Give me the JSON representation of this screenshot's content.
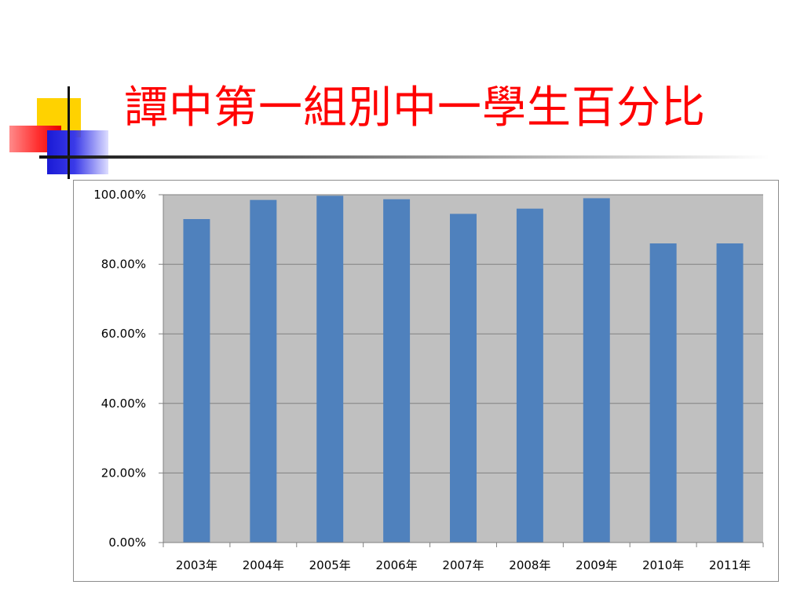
{
  "slide": {
    "title": "譚中第一組別中一學生百分比"
  },
  "colors": {
    "title": "#ff0000",
    "bar": "#4f81bd",
    "plot_background": "#c0c0c0",
    "gridline": "#808080"
  },
  "chart_data": {
    "type": "bar",
    "title": "",
    "xlabel": "",
    "ylabel": "",
    "categories": [
      "2003年",
      "2004年",
      "2005年",
      "2006年",
      "2007年",
      "2008年",
      "2009年",
      "2010年",
      "2011年"
    ],
    "values": [
      93.0,
      98.5,
      99.7,
      98.7,
      94.5,
      96.0,
      99.0,
      86.0,
      86.0
    ],
    "ylim": [
      0,
      100
    ],
    "yticks": [
      0,
      20,
      40,
      60,
      80,
      100
    ],
    "ytick_labels": [
      "0.00%",
      "20.00%",
      "40.00%",
      "60.00%",
      "80.00%",
      "100.00%"
    ],
    "grid": true,
    "legend": "none"
  }
}
